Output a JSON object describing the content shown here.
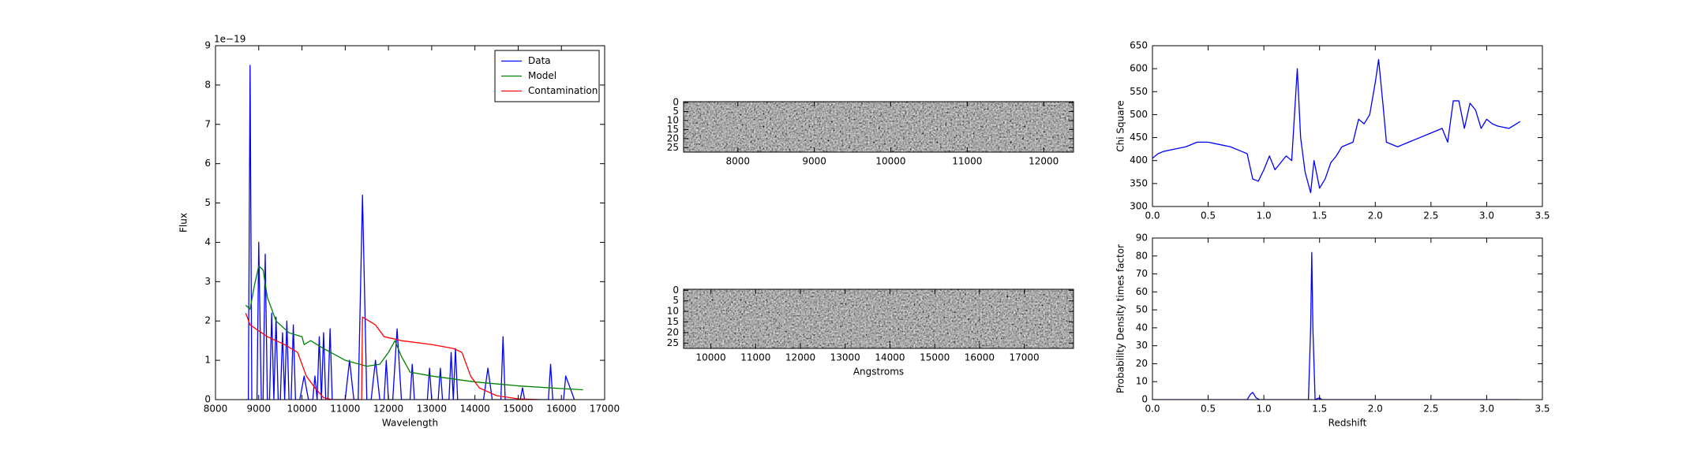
{
  "chart_data": [
    {
      "type": "line",
      "xlabel": "Wavelength",
      "ylabel": "Flux",
      "offset_text": "1e−19",
      "xlim": [
        8000,
        17000
      ],
      "xticks": [
        8000,
        9000,
        10000,
        11000,
        12000,
        13000,
        14000,
        15000,
        16000,
        17000
      ],
      "ylim": [
        0,
        9
      ],
      "yticks": [
        0,
        1,
        2,
        3,
        4,
        5,
        6,
        7,
        8,
        9
      ],
      "legend": "upper right",
      "series": [
        {
          "name": "Data",
          "color": "#0000ff",
          "x": [
            8700,
            8760,
            8800,
            8840,
            8960,
            9000,
            9060,
            9100,
            9150,
            9200,
            9250,
            9300,
            9350,
            9400,
            9450,
            9500,
            9550,
            9600,
            9650,
            9700,
            9750,
            9800,
            9850,
            9950,
            10050,
            10150,
            10250,
            10300,
            10350,
            10400,
            10450,
            10500,
            10550,
            10600,
            10650,
            10700,
            11000,
            11100,
            11200,
            11300,
            11400,
            11500,
            11600,
            11700,
            11800,
            11900,
            11950,
            12000,
            12100,
            12200,
            12300,
            12500,
            12550,
            12600,
            12900,
            12950,
            13000,
            13150,
            13200,
            13250,
            13400,
            13450,
            13500,
            13550,
            13600,
            14200,
            14300,
            14400,
            14600,
            14650,
            14700,
            15050,
            15100,
            15150,
            15700,
            15750,
            15800,
            16050,
            16100,
            16200,
            16300
          ],
          "values": [
            0,
            0,
            8.5,
            0,
            0,
            4.0,
            0,
            0,
            3.7,
            0,
            0,
            2.2,
            0,
            2.1,
            0,
            0,
            1.7,
            0,
            2.0,
            0,
            0,
            1.9,
            0,
            0,
            0.6,
            0,
            0,
            0.6,
            0,
            1.6,
            0,
            1.7,
            0,
            0,
            1.8,
            0,
            0,
            1.0,
            0,
            0,
            5.2,
            0,
            0,
            1.0,
            0,
            0,
            1.0,
            0,
            0,
            1.8,
            0,
            0,
            0.9,
            0,
            0,
            0.8,
            0,
            0,
            0.8,
            0,
            0,
            1.2,
            0,
            1.3,
            0,
            0,
            0.8,
            0,
            0,
            1.6,
            0,
            0,
            0.3,
            0,
            0,
            0.9,
            0,
            0,
            0.6,
            0.3,
            0
          ]
        },
        {
          "name": "Model",
          "color": "#008000",
          "x": [
            8700,
            8800,
            8900,
            9000,
            9100,
            9200,
            9400,
            9700,
            10000,
            10050,
            10200,
            10500,
            11000,
            11500,
            11800,
            12000,
            12150,
            12300,
            12500,
            13000,
            14000,
            15000,
            16000,
            16500
          ],
          "values": [
            2.4,
            2.3,
            2.9,
            3.4,
            3.3,
            2.6,
            2.0,
            1.7,
            1.6,
            1.4,
            1.5,
            1.3,
            1.0,
            0.85,
            0.9,
            1.2,
            1.5,
            1.1,
            0.7,
            0.6,
            0.45,
            0.35,
            0.28,
            0.25
          ]
        },
        {
          "name": "Contamination",
          "color": "#ff0000",
          "x": [
            8700,
            8800,
            9200,
            9600,
            9900,
            10100,
            10300,
            10500,
            10700,
            11380,
            11400,
            11700,
            11900,
            12300,
            13000,
            13500,
            13700,
            13900,
            14100,
            14500,
            15000,
            15500
          ],
          "values": [
            2.2,
            1.9,
            1.6,
            1.4,
            1.2,
            0.6,
            0.3,
            0.05,
            0,
            0,
            2.1,
            1.9,
            1.6,
            1.5,
            1.4,
            1.3,
            1.2,
            0.6,
            0.3,
            0.1,
            0.02,
            0
          ]
        }
      ]
    },
    {
      "type": "image",
      "xlim": [
        7290,
        12390
      ],
      "xticks": [
        8000,
        9000,
        10000,
        11000,
        12000
      ],
      "ylim": [
        27.5,
        -0.5
      ],
      "yticks": [
        0,
        5,
        10,
        15,
        20,
        25
      ]
    },
    {
      "type": "image",
      "xlabel": "Angstroms",
      "xlim": [
        9390,
        18100
      ],
      "xticks": [
        10000,
        11000,
        12000,
        13000,
        14000,
        15000,
        16000,
        17000
      ],
      "ylim": [
        27.5,
        -0.5
      ],
      "yticks": [
        0,
        5,
        10,
        15,
        20,
        25
      ]
    },
    {
      "type": "line",
      "ylabel": "Chi Square",
      "color": "#0000ff",
      "xlim": [
        0,
        3.5
      ],
      "xticks": [
        {
          "value": 0,
          "label": "0.0"
        },
        0.5,
        {
          "value": 1,
          "label": "1.0"
        },
        1.5,
        {
          "value": 2,
          "label": "2.0"
        },
        2.5,
        {
          "value": 3,
          "label": "3.0"
        },
        3.5
      ],
      "ylim": [
        300,
        650
      ],
      "yticks": [
        300,
        350,
        400,
        450,
        500,
        550,
        600,
        650
      ],
      "x": [
        0,
        0.05,
        0.1,
        0.2,
        0.3,
        0.4,
        0.5,
        0.6,
        0.7,
        0.8,
        0.85,
        0.9,
        0.95,
        1.0,
        1.05,
        1.1,
        1.2,
        1.25,
        1.3,
        1.33,
        1.37,
        1.42,
        1.45,
        1.5,
        1.55,
        1.6,
        1.65,
        1.7,
        1.8,
        1.85,
        1.9,
        1.95,
        2.0,
        2.03,
        2.07,
        2.1,
        2.2,
        2.3,
        2.4,
        2.5,
        2.6,
        2.65,
        2.7,
        2.75,
        2.8,
        2.85,
        2.9,
        2.95,
        3.0,
        3.05,
        3.1,
        3.2,
        3.3
      ],
      "values": [
        405,
        415,
        420,
        425,
        430,
        440,
        440,
        435,
        430,
        420,
        415,
        360,
        355,
        380,
        410,
        380,
        410,
        400,
        600,
        450,
        375,
        330,
        400,
        340,
        360,
        395,
        410,
        430,
        440,
        490,
        480,
        500,
        570,
        620,
        520,
        440,
        430,
        440,
        450,
        460,
        470,
        440,
        530,
        530,
        470,
        525,
        510,
        470,
        490,
        480,
        475,
        470,
        485
      ]
    },
    {
      "type": "line",
      "xlabel": "Redshift",
      "ylabel": "Probability Density times factor",
      "color": "#0000ff",
      "xlim": [
        0,
        3.5
      ],
      "xticks": [
        {
          "value": 0,
          "label": "0.0"
        },
        0.5,
        {
          "value": 1,
          "label": "1.0"
        },
        1.5,
        {
          "value": 2,
          "label": "2.0"
        },
        2.5,
        {
          "value": 3,
          "label": "3.0"
        },
        3.5
      ],
      "ylim": [
        0,
        90
      ],
      "yticks": [
        0,
        10,
        20,
        30,
        40,
        50,
        60,
        70,
        80,
        90
      ],
      "x": [
        0,
        0.85,
        0.88,
        0.9,
        0.93,
        0.96,
        1.4,
        1.42,
        1.43,
        1.44,
        1.46,
        1.5,
        1.52,
        3.3
      ],
      "values": [
        0,
        0,
        3,
        4,
        1,
        0,
        0,
        40,
        82,
        40,
        0,
        1,
        0,
        0
      ]
    }
  ]
}
